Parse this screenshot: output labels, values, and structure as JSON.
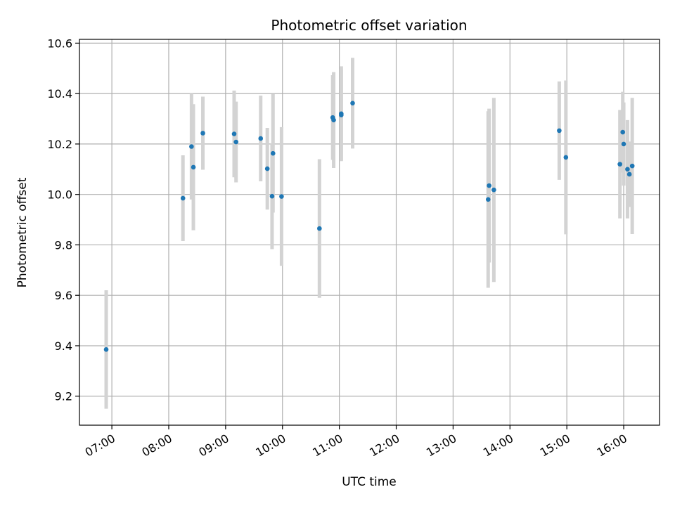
{
  "chart_data": {
    "type": "scatter",
    "title": "Photometric offset variation",
    "xlabel": "UTC time",
    "ylabel": "Photometric offset",
    "x_tick_labels": [
      "07:00",
      "08:00",
      "09:00",
      "10:00",
      "11:00",
      "12:00",
      "13:00",
      "14:00",
      "15:00",
      "16:00"
    ],
    "y_tick_labels": [
      "9.2",
      "9.4",
      "9.6",
      "9.8",
      "10.0",
      "10.2",
      "10.4",
      "10.6"
    ],
    "x_ticks_hours": [
      7,
      8,
      9,
      10,
      11,
      12,
      13,
      14,
      15,
      16
    ],
    "y_ticks": [
      9.2,
      9.4,
      9.6,
      9.8,
      10.0,
      10.2,
      10.4,
      10.6
    ],
    "xlim_hours": [
      6.43,
      16.63
    ],
    "ylim": [
      9.085,
      10.615
    ],
    "grid": true,
    "point_color": "#1f77b4",
    "errorbar_color": "#d3d3d3",
    "points": [
      {
        "t": "06:54",
        "y": 9.385,
        "err": 0.235
      },
      {
        "t": "08:15",
        "y": 9.985,
        "err": 0.17
      },
      {
        "t": "08:24",
        "y": 10.19,
        "err": 0.21
      },
      {
        "t": "08:26",
        "y": 10.108,
        "err": 0.25
      },
      {
        "t": "08:36",
        "y": 10.243,
        "err": 0.145
      },
      {
        "t": "09:09",
        "y": 10.24,
        "err": 0.172
      },
      {
        "t": "09:11",
        "y": 10.208,
        "err": 0.16
      },
      {
        "t": "09:37",
        "y": 10.222,
        "err": 0.17
      },
      {
        "t": "09:44",
        "y": 10.102,
        "err": 0.162
      },
      {
        "t": "09:49",
        "y": 9.993,
        "err": 0.21
      },
      {
        "t": "09:50",
        "y": 10.163,
        "err": 0.235
      },
      {
        "t": "09:59",
        "y": 9.992,
        "err": 0.275
      },
      {
        "t": "10:39",
        "y": 9.865,
        "err": 0.275
      },
      {
        "t": "10:53",
        "y": 10.305,
        "err": 0.168
      },
      {
        "t": "10:54",
        "y": 10.295,
        "err": 0.19
      },
      {
        "t": "11:02",
        "y": 10.32,
        "err": 0.188
      },
      {
        "t": "11:02",
        "y": 10.315,
        "err": 0.18
      },
      {
        "t": "11:14",
        "y": 10.362,
        "err": 0.18
      },
      {
        "t": "13:37",
        "y": 9.98,
        "err": 0.35
      },
      {
        "t": "13:38",
        "y": 10.035,
        "err": 0.305
      },
      {
        "t": "13:43",
        "y": 10.018,
        "err": 0.365
      },
      {
        "t": "14:52",
        "y": 10.253,
        "err": 0.195
      },
      {
        "t": "14:59",
        "y": 10.147,
        "err": 0.305
      },
      {
        "t": "15:56",
        "y": 10.12,
        "err": 0.215
      },
      {
        "t": "15:59",
        "y": 10.247,
        "err": 0.16
      },
      {
        "t": "16:00",
        "y": 10.2,
        "err": 0.165
      },
      {
        "t": "16:04",
        "y": 10.1,
        "err": 0.195
      },
      {
        "t": "16:06",
        "y": 10.08,
        "err": 0.13
      },
      {
        "t": "16:09",
        "y": 10.113,
        "err": 0.27
      }
    ]
  }
}
